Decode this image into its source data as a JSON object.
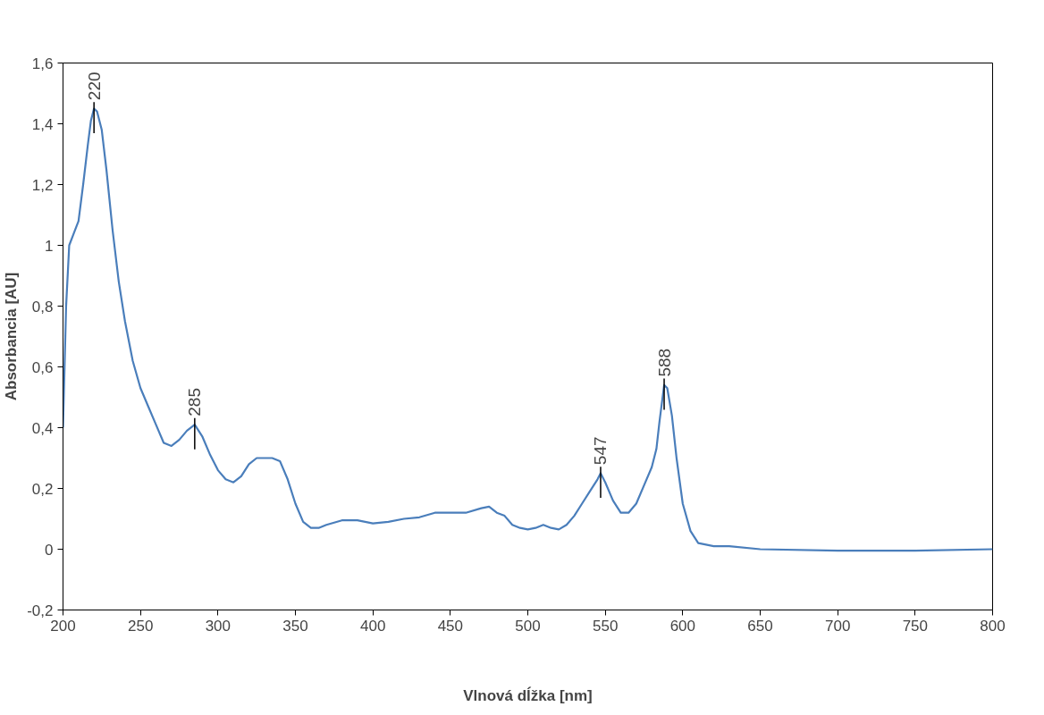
{
  "chart_data": {
    "type": "line",
    "xlabel": "Vlnová dĺžka [nm]",
    "ylabel": "Absorbancia [AU]",
    "x": [
      200,
      202,
      204,
      207,
      210,
      213,
      216,
      218,
      220,
      222,
      225,
      228,
      232,
      236,
      240,
      245,
      250,
      255,
      260,
      265,
      270,
      275,
      280,
      285,
      290,
      295,
      300,
      305,
      310,
      315,
      320,
      325,
      330,
      335,
      340,
      345,
      350,
      355,
      360,
      365,
      370,
      380,
      390,
      400,
      410,
      420,
      430,
      440,
      450,
      460,
      470,
      475,
      480,
      485,
      490,
      495,
      500,
      505,
      510,
      515,
      520,
      525,
      530,
      535,
      540,
      545,
      547,
      550,
      555,
      560,
      565,
      570,
      575,
      580,
      583,
      585,
      588,
      590,
      593,
      596,
      600,
      605,
      610,
      620,
      630,
      650,
      700,
      750,
      800
    ],
    "series": [
      {
        "color": "#4a7ebb",
        "values": [
          0.4,
          0.8,
          1.0,
          1.04,
          1.08,
          1.2,
          1.33,
          1.41,
          1.45,
          1.44,
          1.38,
          1.25,
          1.05,
          0.88,
          0.75,
          0.62,
          0.53,
          0.47,
          0.41,
          0.35,
          0.34,
          0.36,
          0.39,
          0.41,
          0.37,
          0.31,
          0.26,
          0.23,
          0.22,
          0.24,
          0.28,
          0.3,
          0.3,
          0.3,
          0.29,
          0.23,
          0.15,
          0.09,
          0.07,
          0.07,
          0.08,
          0.095,
          0.095,
          0.085,
          0.09,
          0.1,
          0.105,
          0.12,
          0.12,
          0.12,
          0.135,
          0.14,
          0.12,
          0.11,
          0.08,
          0.07,
          0.065,
          0.07,
          0.08,
          0.07,
          0.065,
          0.08,
          0.11,
          0.15,
          0.19,
          0.23,
          0.25,
          0.22,
          0.16,
          0.12,
          0.12,
          0.15,
          0.21,
          0.27,
          0.33,
          0.42,
          0.54,
          0.53,
          0.44,
          0.3,
          0.15,
          0.06,
          0.02,
          0.01,
          0.01,
          0.0,
          -0.005,
          -0.005,
          0.0
        ]
      }
    ],
    "annotations": [
      {
        "text": "220",
        "x": 220,
        "y": 1.45
      },
      {
        "text": "285",
        "x": 285,
        "y": 0.41
      },
      {
        "text": "547",
        "x": 547,
        "y": 0.25
      },
      {
        "text": "588",
        "x": 588,
        "y": 0.54
      }
    ],
    "xlim": [
      200,
      800
    ],
    "xticks": [
      200,
      250,
      300,
      350,
      400,
      450,
      500,
      550,
      600,
      650,
      700,
      750,
      800
    ],
    "ylim": [
      -0.2,
      1.6
    ],
    "yticks": [
      {
        "value": -0.2,
        "label": "-0,2"
      },
      0,
      {
        "value": 0.2,
        "label": "0,2"
      },
      {
        "value": 0.4,
        "label": "0,4"
      },
      {
        "value": 0.6,
        "label": "0,6"
      },
      {
        "value": 0.8,
        "label": "0,8"
      },
      1,
      {
        "value": 1.2,
        "label": "1,2"
      },
      {
        "value": 1.4,
        "label": "1,4"
      },
      {
        "value": 1.6,
        "label": "1,6"
      }
    ],
    "grid": false,
    "marker": "none",
    "line_style": "solid"
  }
}
